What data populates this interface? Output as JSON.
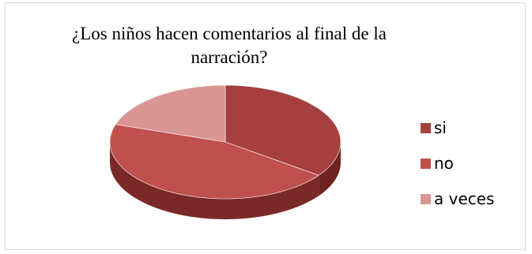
{
  "chart_data": {
    "type": "pie",
    "title": "¿Los niños hacen comentarios al final de la narración?",
    "categories": [
      "si",
      "no",
      "a veces"
    ],
    "values": [
      35,
      45,
      20
    ],
    "colors": [
      "#a5403f",
      "#c0504d",
      "#d99694"
    ],
    "side_colors": [
      "#6e2321",
      "#7a2928",
      "#8d4a48"
    ],
    "legend_position": "right"
  }
}
